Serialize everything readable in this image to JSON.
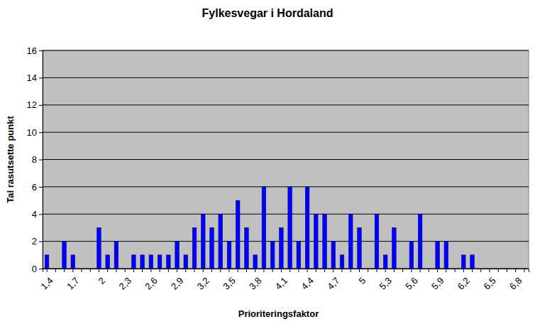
{
  "chart_data": {
    "type": "bar",
    "title": "Fylkesvegar i Hordaland",
    "x_label": "Prioriteringsfaktor",
    "y_label": "Tal rasutsette punkt",
    "categories": [
      "1,4",
      null,
      null,
      "1,7",
      null,
      null,
      "2",
      null,
      null,
      "2,3",
      null,
      null,
      "2,6",
      null,
      null,
      "2,9",
      null,
      null,
      "3,2",
      null,
      null,
      "3,5",
      null,
      null,
      "3,8",
      null,
      null,
      "4,1",
      null,
      null,
      "4,4",
      null,
      null,
      "4,7",
      null,
      null,
      "5",
      null,
      null,
      "5,3",
      null,
      null,
      "5,6",
      null,
      null,
      "5,9",
      null,
      null,
      "6,2",
      null,
      null,
      "6,5",
      null,
      null,
      "6,8",
      null
    ],
    "values": [
      1,
      0,
      2,
      1,
      0,
      0,
      3,
      1,
      2,
      0,
      1,
      1,
      1,
      1,
      1,
      2,
      1,
      3,
      4,
      3,
      4,
      2,
      5,
      3,
      1,
      6,
      2,
      3,
      6,
      2,
      6,
      4,
      4,
      2,
      1,
      4,
      3,
      0,
      4,
      1,
      3,
      0,
      2,
      4,
      0,
      2,
      2,
      0,
      1,
      1,
      0,
      0,
      0,
      0,
      0,
      0
    ],
    "color": "#0000ff",
    "ylim": [
      0,
      16
    ],
    "yticks": [
      0,
      2,
      4,
      6,
      8,
      10,
      12,
      14,
      16
    ],
    "grid": true
  }
}
